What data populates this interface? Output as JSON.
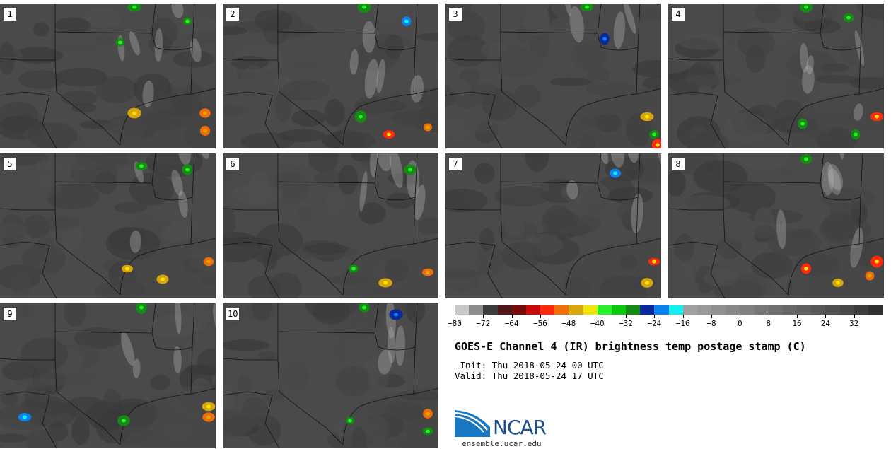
{
  "title": "GOES-E Channel 4 (IR) brightness temp postage stamp (C)",
  "init_line": " Init: Thu 2018-05-24 00 UTC",
  "valid_line": "Valid: Thu 2018-05-24 17 UTC",
  "members": [
    "1",
    "2",
    "3",
    "4",
    "5",
    "6",
    "7",
    "8",
    "9",
    "10"
  ],
  "colorbar": {
    "min": -80,
    "max": 40,
    "step": 4,
    "tick_values": [
      -80,
      -72,
      -64,
      -56,
      -48,
      -40,
      -32,
      -24,
      -16,
      -8,
      0,
      8,
      16,
      24,
      32
    ],
    "tick_labels": [
      "−80",
      "−72",
      "−64",
      "−56",
      "−48",
      "−40",
      "−32",
      "−24",
      "−16",
      "−8",
      "0",
      "8",
      "16",
      "24",
      "32"
    ],
    "colors": [
      "#c8c8c8",
      "#8c8c8c",
      "#3c3c3c",
      "#501818",
      "#780a0a",
      "#c80a0a",
      "#ff2a0a",
      "#f06e0a",
      "#d8a50a",
      "#f0e60a",
      "#28f028",
      "#0ac80a",
      "#148c14",
      "#0a28a0",
      "#0a82f0",
      "#14f0f0",
      "#a0a0a0",
      "#999999",
      "#909090",
      "#888888",
      "#808080",
      "#787878",
      "#707070",
      "#686868",
      "#606060",
      "#585858",
      "#505050",
      "#484848",
      "#3c3c3c",
      "#303030"
    ]
  },
  "logo": {
    "name": "NCAR",
    "url_text": "ensemble.ucar.edu"
  }
}
